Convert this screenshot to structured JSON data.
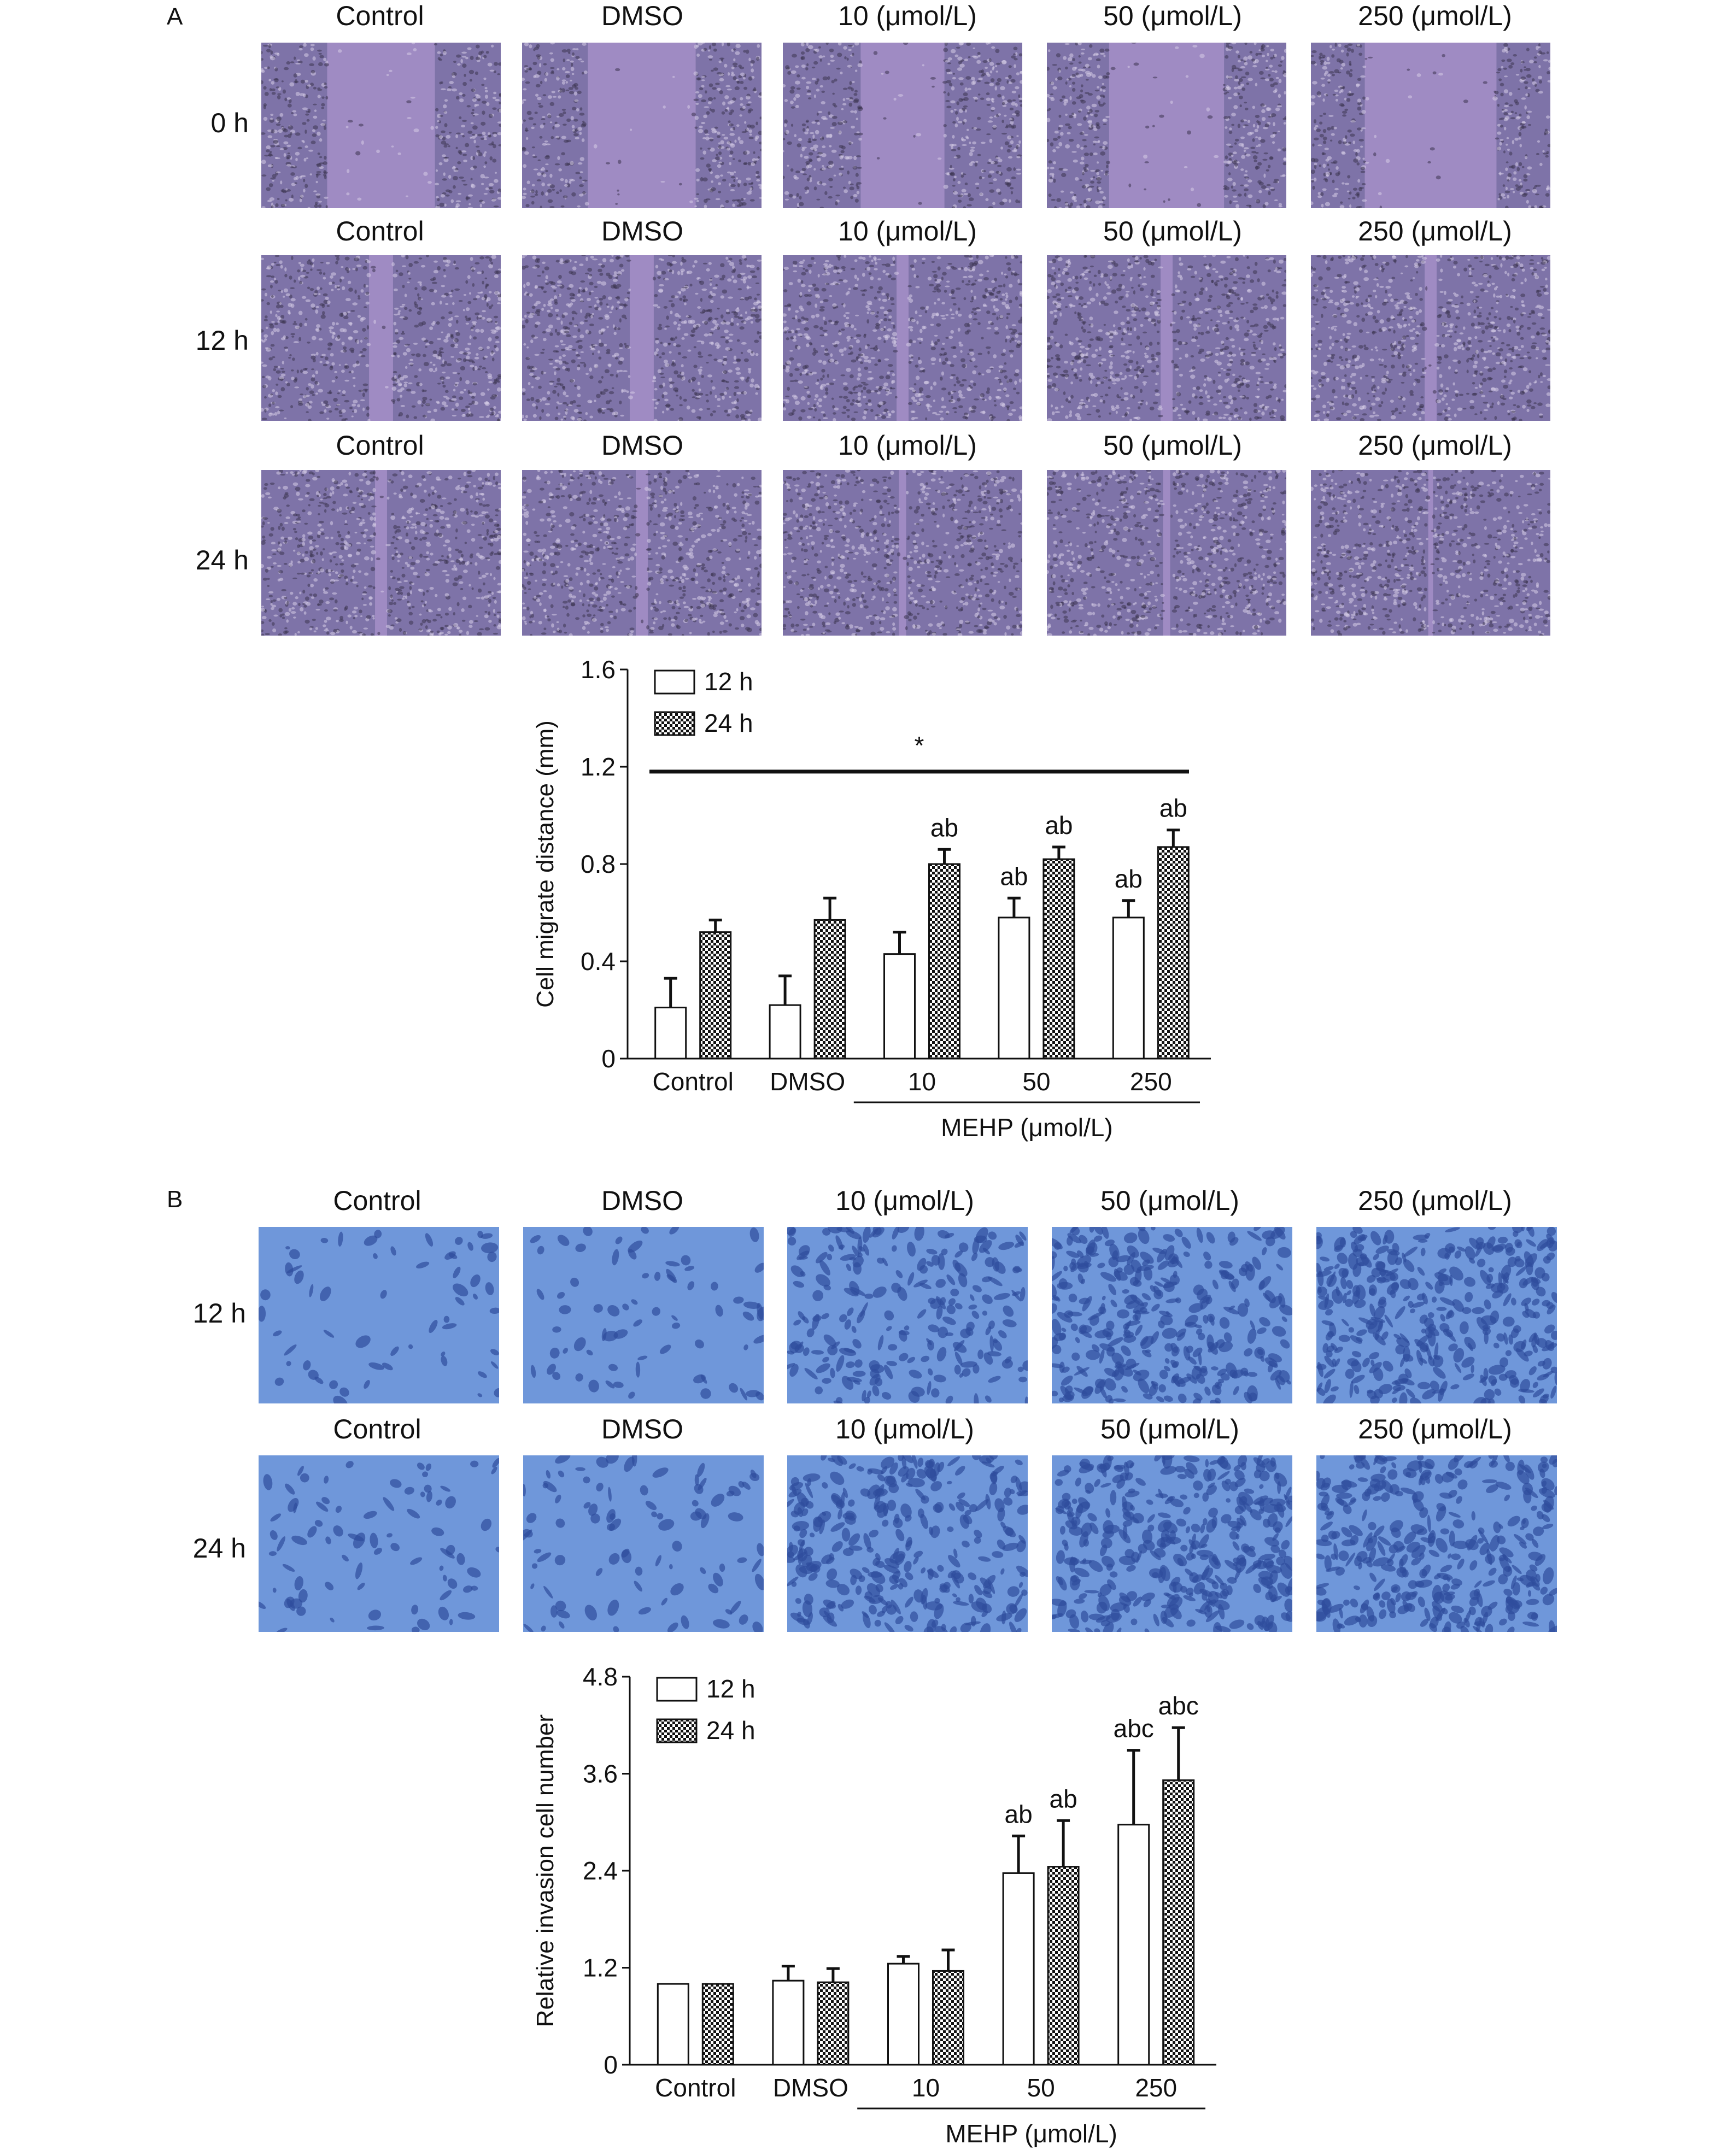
{
  "panelA": {
    "letter": "A",
    "column_labels": [
      "Control",
      "DMSO",
      "10 (μmol/L)",
      "50 (μmol/L)",
      "250 (μmol/L)"
    ],
    "rows": [
      {
        "time": "0 h"
      },
      {
        "time": "12 h"
      },
      {
        "time": "24 h"
      }
    ]
  },
  "panelB": {
    "letter": "B",
    "column_labels": [
      "Control",
      "DMSO",
      "10 (μmol/L)",
      "50 (μmol/L)",
      "250 (μmol/L)"
    ],
    "rows": [
      {
        "time": "12 h"
      },
      {
        "time": "24 h"
      }
    ]
  },
  "colors": {
    "scratch_cells": "#7e73a8",
    "scratch_gap": "#a58fc8",
    "invasion_bg": "#6f97da",
    "invasion_cells": "#2f4d9c",
    "bar_12h": "#ffffff",
    "bar_24h_pattern": "#111111"
  },
  "chart_data": [
    {
      "type": "bar",
      "ylabel": "Cell migrate distance (mm)",
      "xlabel": "MEHP (μmol/L)",
      "categories": [
        "Control",
        "DMSO",
        "10",
        "50",
        "250"
      ],
      "yticks": [
        "0",
        "0.4",
        "0.8",
        "1.2",
        "1.6"
      ],
      "ylim": [
        0,
        1.6
      ],
      "legend_position": "top-left",
      "series": [
        {
          "name": "12 h",
          "values": [
            0.21,
            0.22,
            0.43,
            0.58,
            0.58
          ],
          "errors": [
            0.12,
            0.12,
            0.09,
            0.08,
            0.07
          ],
          "annotations": [
            "",
            "",
            "",
            "ab",
            "ab"
          ]
        },
        {
          "name": "24 h",
          "values": [
            0.52,
            0.57,
            0.8,
            0.82,
            0.87
          ],
          "errors": [
            0.05,
            0.09,
            0.06,
            0.05,
            0.07
          ],
          "annotations": [
            "",
            "",
            "ab",
            "ab",
            "ab"
          ]
        }
      ],
      "significance": {
        "label": "*",
        "y": 1.18
      }
    },
    {
      "type": "bar",
      "ylabel": "Relative invasion cell number",
      "xlabel": "MEHP (μmol/L)",
      "categories": [
        "Control",
        "DMSO",
        "10",
        "50",
        "250"
      ],
      "yticks": [
        "0",
        "1.2",
        "2.4",
        "3.6",
        "4.8"
      ],
      "ylim": [
        0,
        4.8
      ],
      "legend_position": "top-left",
      "series": [
        {
          "name": "12 h",
          "values": [
            1.0,
            1.04,
            1.25,
            2.37,
            2.97
          ],
          "errors": [
            0.0,
            0.18,
            0.09,
            0.46,
            0.92
          ],
          "annotations": [
            "",
            "",
            "",
            "ab",
            "abc"
          ]
        },
        {
          "name": "24 h",
          "values": [
            1.0,
            1.02,
            1.16,
            2.45,
            3.52
          ],
          "errors": [
            0.0,
            0.17,
            0.26,
            0.57,
            0.65
          ],
          "annotations": [
            "",
            "",
            "",
            "ab",
            "abc"
          ]
        }
      ]
    }
  ]
}
